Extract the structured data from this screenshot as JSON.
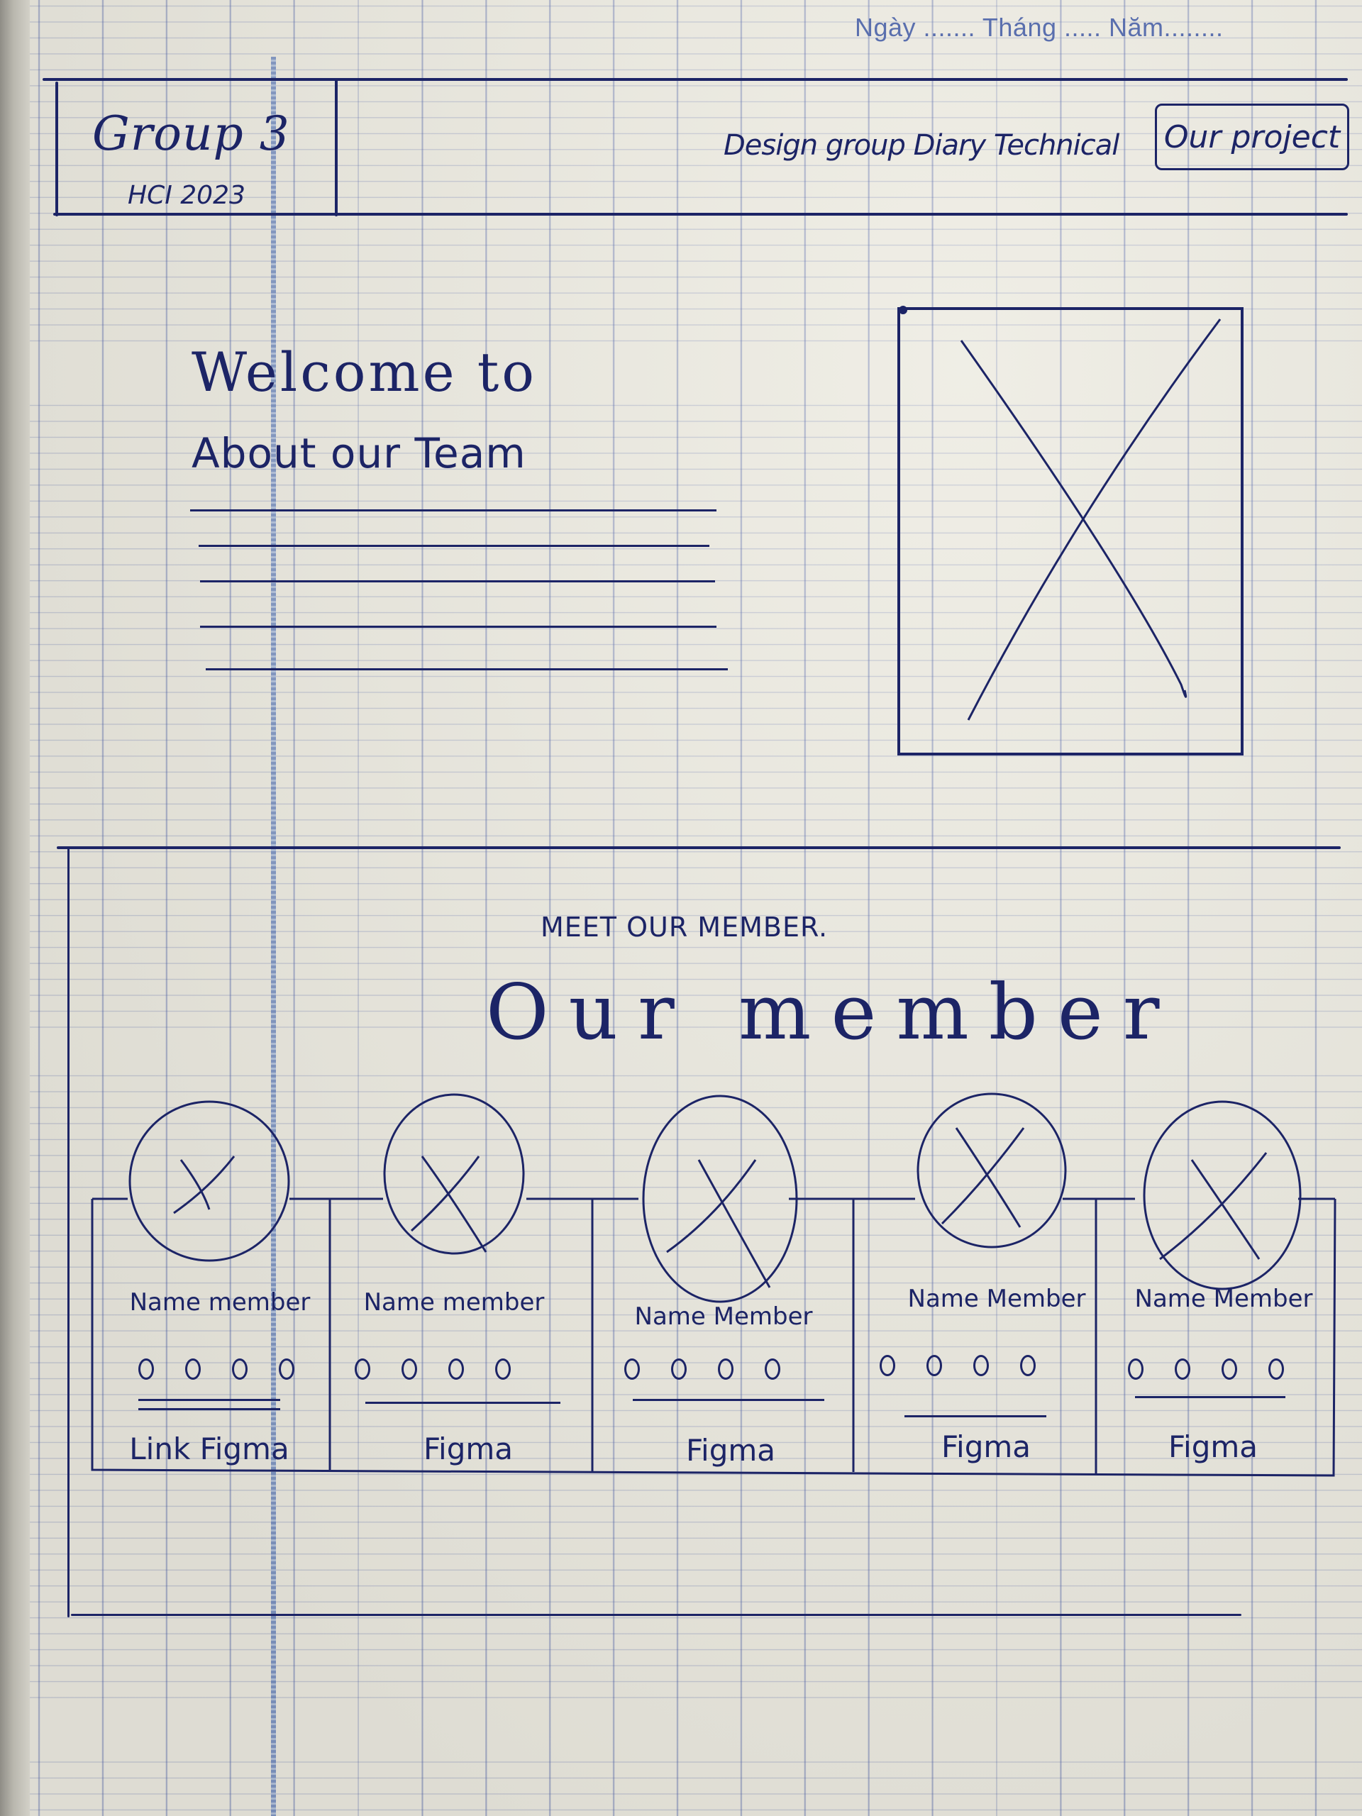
{
  "date_line": "Ngày ....... Tháng ..... Năm........",
  "header": {
    "brand": "Group 3",
    "brand_sub": "HCI 2023",
    "nav_link": "Design group Diary Technical",
    "nav_button": "Our project"
  },
  "hero": {
    "title": "Welcome to",
    "subtitle": "About our Team"
  },
  "members_section": {
    "eyebrow": "MEET OUR MEMBER.",
    "title": "Our member",
    "members": [
      {
        "name": "Name member",
        "link": "Link Figma"
      },
      {
        "name": "Name member",
        "link": "Figma"
      },
      {
        "name": "Name Member",
        "link": "Figma"
      },
      {
        "name": "Name Member",
        "link": "Figma"
      },
      {
        "name": "Name Member",
        "link": "Figma"
      }
    ]
  },
  "colors": {
    "ink": "#1c2466",
    "grid": "#465aa5",
    "paper": "#eceae0",
    "margin_rule": "#5c7ab8"
  }
}
